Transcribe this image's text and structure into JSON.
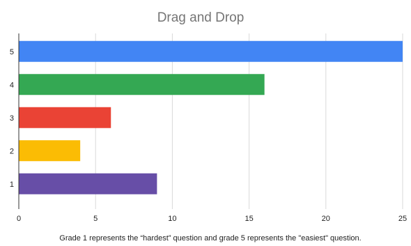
{
  "chart_data": {
    "type": "bar",
    "orientation": "horizontal",
    "title": "Drag and Drop",
    "xlabel": "Grade 1 represents the “hardest” question and grade 5 represents the \"easiest\" question.",
    "ylabel": "",
    "categories": [
      "5",
      "4",
      "3",
      "2",
      "1"
    ],
    "values": [
      25,
      16,
      6,
      4,
      9
    ],
    "colors": [
      "#4285f4",
      "#34a853",
      "#ea4335",
      "#fbbc04",
      "#674ea7"
    ],
    "xlim": [
      0,
      25
    ],
    "xticks": [
      "0",
      "5",
      "10",
      "15",
      "20",
      "25"
    ],
    "grid": "vertical",
    "legend": "none"
  }
}
